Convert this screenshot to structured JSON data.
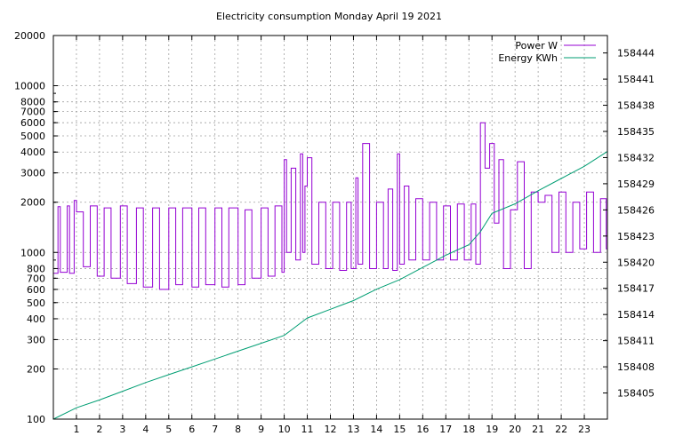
{
  "chart_data": {
    "type": "line",
    "title": "Electricity consumption Monday April 19 2021",
    "xlabel": "",
    "ylabel": "",
    "y2label": "",
    "grid": true,
    "legend_position": "top-right",
    "xlim": [
      0,
      24
    ],
    "ylim": [
      100,
      20000
    ],
    "y_scale": "log",
    "y2lim": [
      158402,
      158446
    ],
    "x_ticks": [
      1,
      2,
      3,
      4,
      5,
      6,
      7,
      8,
      9,
      10,
      11,
      12,
      13,
      14,
      15,
      16,
      17,
      18,
      19,
      20,
      21,
      22,
      23
    ],
    "y_ticks": [
      {
        "value": 100,
        "label": "100"
      },
      {
        "value": 200,
        "label": "200"
      },
      {
        "value": 300,
        "label": "300"
      },
      {
        "value": 400,
        "label": "400"
      },
      {
        "value": 500,
        "label": "500"
      },
      {
        "value": 600,
        "label": "600"
      },
      {
        "value": 700,
        "label": "700"
      },
      {
        "value": 800,
        "label": "800"
      },
      {
        "value": 1000,
        "label": "1000"
      },
      {
        "value": 2000,
        "label": "2000"
      },
      {
        "value": 3000,
        "label": "3000"
      },
      {
        "value": 4000,
        "label": "4000"
      },
      {
        "value": 5000,
        "label": "5000"
      },
      {
        "value": 6000,
        "label": "6000"
      },
      {
        "value": 7000,
        "label": "7000"
      },
      {
        "value": 8000,
        "label": "8000"
      },
      {
        "value": 10000,
        "label": "10000"
      },
      {
        "value": 20000,
        "label": "20000"
      }
    ],
    "y2_ticks": [
      158405,
      158408,
      158411,
      158414,
      158417,
      158420,
      158423,
      158426,
      158429,
      158432,
      158435,
      158438,
      158441,
      158444
    ],
    "series": [
      {
        "name": "Power W",
        "axis": "y",
        "color": "#9400d3",
        "x": [
          0.0,
          0.2,
          0.3,
          0.6,
          0.7,
          0.9,
          1.0,
          1.3,
          1.6,
          1.9,
          2.2,
          2.5,
          2.9,
          3.2,
          3.6,
          3.9,
          4.3,
          4.6,
          5.0,
          5.3,
          5.6,
          6.0,
          6.3,
          6.6,
          7.0,
          7.3,
          7.6,
          8.0,
          8.3,
          8.6,
          9.0,
          9.3,
          9.6,
          9.9,
          10.0,
          10.1,
          10.3,
          10.5,
          10.7,
          10.8,
          10.9,
          11.0,
          11.2,
          11.5,
          11.8,
          12.1,
          12.4,
          12.7,
          12.9,
          13.1,
          13.2,
          13.4,
          13.7,
          14.0,
          14.3,
          14.5,
          14.7,
          14.9,
          15.0,
          15.2,
          15.4,
          15.7,
          16.0,
          16.3,
          16.6,
          16.9,
          17.2,
          17.5,
          17.8,
          18.1,
          18.3,
          18.5,
          18.7,
          18.9,
          19.1,
          19.3,
          19.5,
          19.8,
          20.1,
          20.4,
          20.7,
          21.0,
          21.3,
          21.6,
          21.9,
          22.2,
          22.5,
          22.8,
          23.1,
          23.4,
          23.7,
          23.95
        ],
        "y": [
          750,
          1880,
          760,
          1900,
          750,
          2050,
          1750,
          820,
          1900,
          720,
          1850,
          700,
          1900,
          650,
          1850,
          620,
          1850,
          600,
          1850,
          640,
          1850,
          620,
          1850,
          640,
          1850,
          620,
          1850,
          640,
          1800,
          700,
          1850,
          720,
          1900,
          760,
          3600,
          1000,
          3200,
          900,
          3900,
          1000,
          2500,
          3700,
          850,
          2000,
          800,
          2000,
          780,
          2000,
          800,
          2800,
          850,
          4500,
          800,
          2000,
          800,
          2400,
          780,
          3900,
          850,
          2500,
          900,
          2100,
          900,
          2000,
          900,
          1900,
          900,
          1950,
          900,
          1950,
          850,
          6000,
          3200,
          4500,
          1500,
          3600,
          800,
          1800,
          3500,
          800,
          2300,
          2000,
          2200,
          1000,
          2300,
          1000,
          2000,
          1050,
          2300,
          1000,
          2100,
          1050
        ]
      },
      {
        "name": "Energy KWh",
        "axis": "y2",
        "color": "#009e73",
        "x": [
          0,
          1,
          2,
          3,
          4,
          5,
          6,
          7,
          8,
          9,
          10,
          10.5,
          11,
          12,
          13,
          14,
          15,
          16,
          17,
          18,
          18.5,
          19,
          20,
          21,
          22,
          23,
          24
        ],
        "y": [
          158402.0,
          158403.3,
          158404.2,
          158405.2,
          158406.2,
          158407.1,
          158408.0,
          158408.9,
          158409.8,
          158410.7,
          158411.6,
          158412.6,
          158413.6,
          158414.6,
          158415.6,
          158416.9,
          158418.0,
          158419.4,
          158420.8,
          158422.0,
          158423.5,
          158425.6,
          158426.7,
          158428.2,
          158429.6,
          158431.0,
          158432.7
        ]
      }
    ]
  }
}
